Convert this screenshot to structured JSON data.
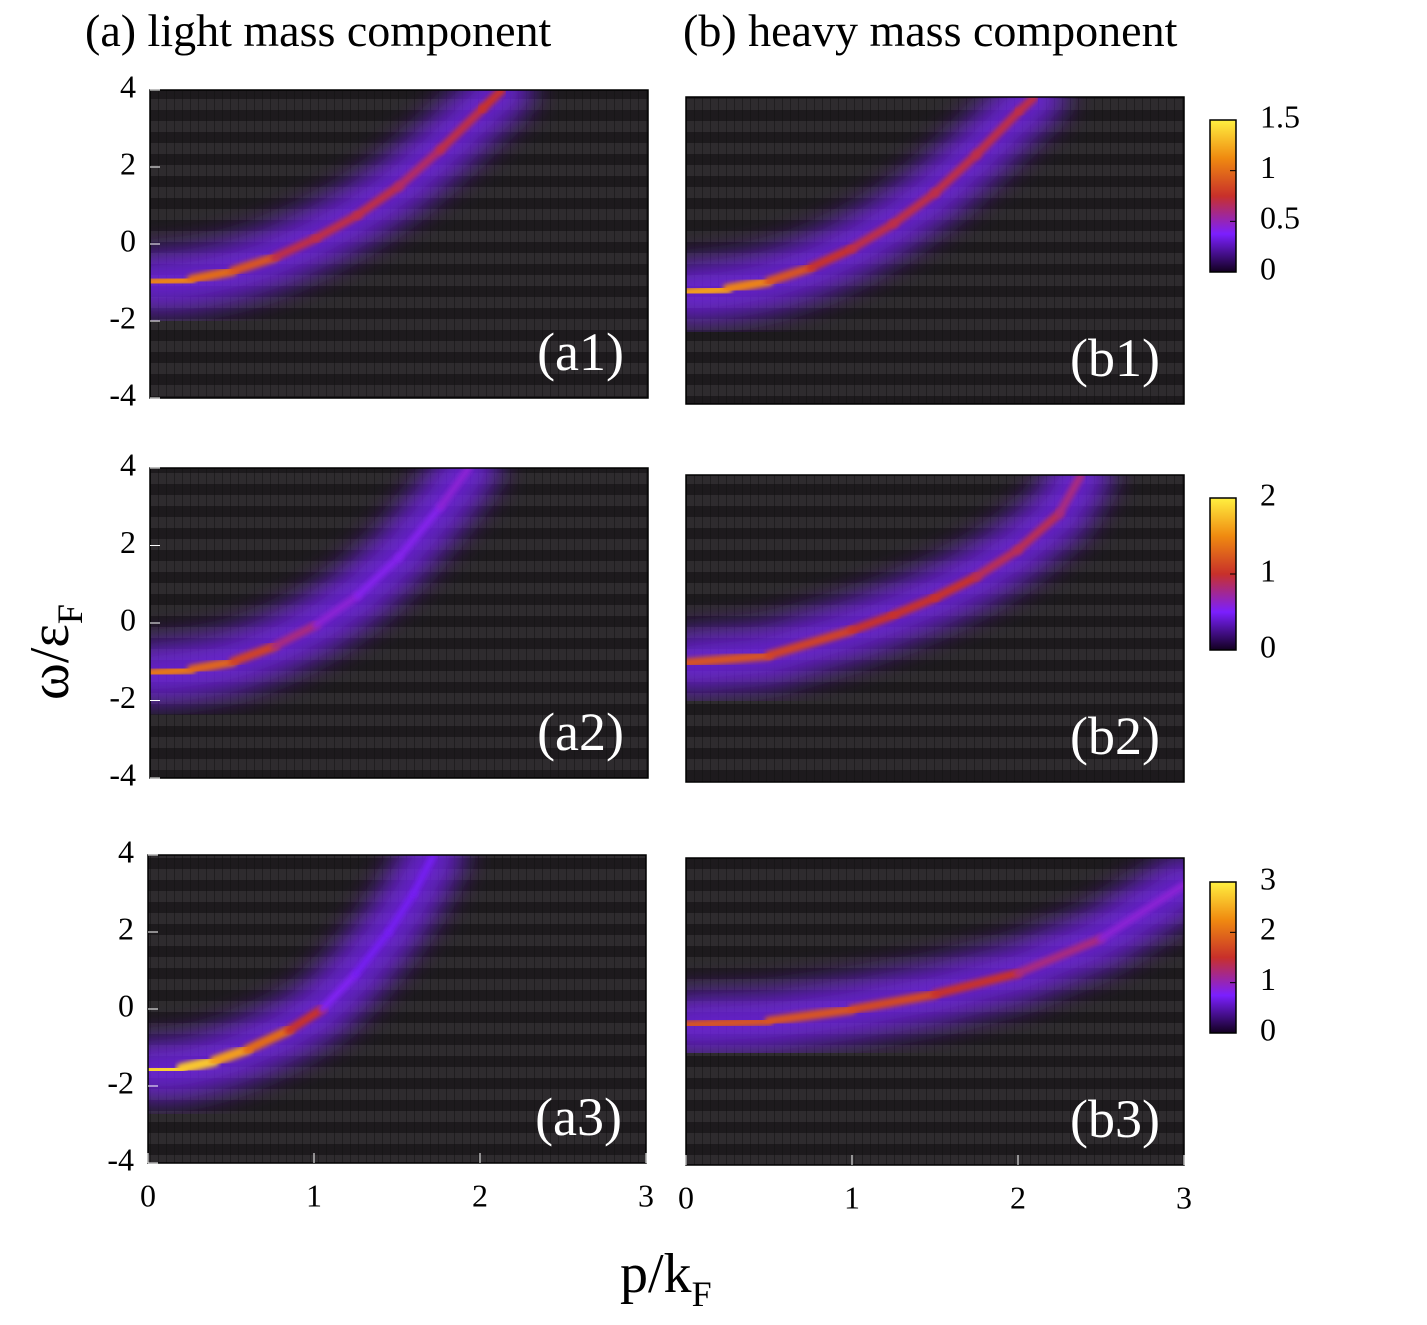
{
  "figure": {
    "xlabel": "p/k",
    "xlabel_sub": "F",
    "ylabel": "ω/ε",
    "ylabel_sub": "F",
    "colormap": [
      "#120020",
      "#7b1fff",
      "#c8302a",
      "#f08a10",
      "#fff040"
    ]
  },
  "chart_data": [
    {
      "type": "heatmap",
      "title": "(a) light mass component",
      "label": "(a1)",
      "xlim": [
        0,
        3
      ],
      "ylim": [
        -4,
        4
      ],
      "yticks": [
        -4,
        -2,
        0,
        2,
        4
      ],
      "series": [
        {
          "x": [
            0,
            0.25,
            0.5,
            0.75,
            1,
            1.25,
            1.5,
            1.75,
            2,
            2.12
          ],
          "y": [
            -1,
            -0.92,
            -0.7,
            -0.35,
            0.15,
            0.75,
            1.5,
            2.45,
            3.5,
            4
          ],
          "intensity": [
            1.1,
            1.0,
            0.9,
            0.7,
            0.7,
            0.7,
            0.65,
            0.7,
            0.75,
            0.75
          ]
        }
      ]
    },
    {
      "type": "heatmap",
      "title": "(b) heavy mass component",
      "label": "(b1)",
      "xlim": [
        0,
        3
      ],
      "ylim": [
        -4,
        4
      ],
      "zlim": [
        0,
        1.5
      ],
      "zticks": [
        0,
        0.5,
        1,
        1.5
      ],
      "series": [
        {
          "x": [
            0,
            0.25,
            0.5,
            0.75,
            1,
            1.25,
            1.5,
            1.75,
            2,
            2.1
          ],
          "y": [
            -1.1,
            -1.0,
            -0.8,
            -0.45,
            0.05,
            0.7,
            1.5,
            2.5,
            3.6,
            4
          ],
          "intensity": [
            1.2,
            1.1,
            0.9,
            0.75,
            0.7,
            0.7,
            0.7,
            0.7,
            0.7,
            0.7
          ]
        }
      ]
    },
    {
      "type": "heatmap",
      "label": "(a2)",
      "xlim": [
        0,
        3
      ],
      "ylim": [
        -4,
        4
      ],
      "yticks": [
        -4,
        -2,
        0,
        2,
        4
      ],
      "series": [
        {
          "x": [
            0,
            0.25,
            0.5,
            0.75,
            1,
            1.25,
            1.5,
            1.75,
            1.92
          ],
          "y": [
            -1.3,
            -1.2,
            -1.0,
            -0.6,
            -0.05,
            0.7,
            1.7,
            3.0,
            4
          ],
          "intensity": [
            1.4,
            1.3,
            1.1,
            0.8,
            0.6,
            0.55,
            0.55,
            0.6,
            0.6
          ]
        }
      ]
    },
    {
      "type": "heatmap",
      "label": "(b2)",
      "xlim": [
        0,
        3
      ],
      "ylim": [
        -4,
        4
      ],
      "zlim": [
        0,
        2
      ],
      "zticks": [
        0,
        1,
        2
      ],
      "series": [
        {
          "x": [
            0,
            0.5,
            1,
            1.25,
            1.5,
            1.75,
            2,
            2.25,
            2.38
          ],
          "y": [
            -0.9,
            -0.7,
            -0.05,
            0.35,
            0.8,
            1.35,
            2.05,
            3.0,
            4
          ],
          "intensity": [
            1.2,
            1.1,
            1.0,
            1.0,
            1.0,
            0.9,
            0.9,
            0.8,
            0.8
          ]
        }
      ]
    },
    {
      "type": "heatmap",
      "label": "(a3)",
      "xlim": [
        0,
        3
      ],
      "ylim": [
        -4,
        4
      ],
      "yticks": [
        -4,
        -2,
        0,
        2,
        4
      ],
      "xticks": [
        0,
        1,
        2,
        3
      ],
      "series": [
        {
          "x": [
            0,
            0.2,
            0.4,
            0.6,
            0.85,
            1.05,
            1.25,
            1.45,
            1.6,
            1.72
          ],
          "y": [
            -1.6,
            -1.55,
            -1.35,
            -1.05,
            -0.55,
            0,
            0.9,
            2,
            3,
            4
          ],
          "intensity": [
            2.8,
            2.7,
            2.4,
            2.0,
            1.5,
            0.8,
            0.7,
            0.7,
            0.7,
            0.7
          ]
        }
      ]
    },
    {
      "type": "heatmap",
      "label": "(b3)",
      "xlim": [
        0,
        3
      ],
      "ylim": [
        -4,
        4
      ],
      "xticks": [
        0,
        1,
        2,
        3
      ],
      "zlim": [
        0,
        3
      ],
      "zticks": [
        0,
        1,
        2,
        3
      ],
      "series": [
        {
          "x": [
            0,
            0.5,
            1,
            1.5,
            2,
            2.5,
            3
          ],
          "y": [
            -0.35,
            -0.25,
            0.05,
            0.45,
            1.0,
            1.9,
            3.3
          ],
          "intensity": [
            1.8,
            1.8,
            1.7,
            1.5,
            1.2,
            0.9,
            0.8
          ]
        }
      ]
    }
  ]
}
